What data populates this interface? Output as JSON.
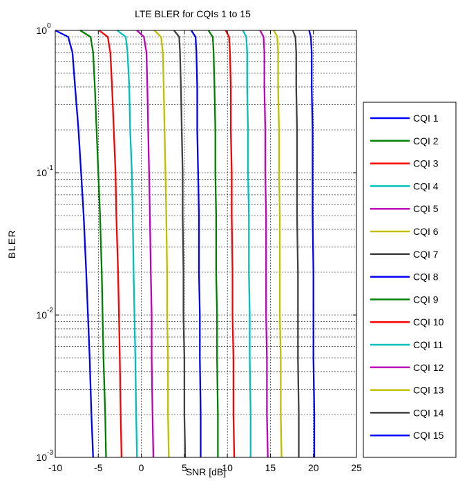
{
  "chart_data": {
    "type": "line",
    "title": "LTE BLER for CQIs 1 to 15",
    "xlabel": "SNR [dB]",
    "ylabel": "BLER",
    "xlim": [
      -10,
      25
    ],
    "ylim": [
      0.001,
      1
    ],
    "yscale": "log",
    "grid": true,
    "legend_position": "right, outside",
    "x_ticks": [
      "-10",
      "-5",
      "0",
      "5",
      "10",
      "15",
      "20",
      "25"
    ],
    "y_ticks": [
      {
        "base": "10",
        "exp": "0"
      },
      {
        "base": "10",
        "exp": "-1"
      },
      {
        "base": "10",
        "exp": "-2"
      },
      {
        "base": "10",
        "exp": "-3"
      }
    ],
    "curve_bler": [
      1,
      0.9,
      0.7,
      0.4,
      0.2,
      0.1,
      0.05,
      0.02,
      0.01,
      0.005,
      0.002,
      0.001
    ],
    "series": [
      {
        "name": "CQI 1",
        "color": "#0000ff",
        "snr": [
          -10.0,
          -8.5,
          -8.0,
          -7.7,
          -7.3,
          -7.0,
          -6.7,
          -6.4,
          -6.2,
          -6.0,
          -5.8,
          -5.6
        ]
      },
      {
        "name": "CQI 2",
        "color": "#008000",
        "snr": [
          -7.1,
          -5.9,
          -5.6,
          -5.4,
          -5.2,
          -5.0,
          -4.8,
          -4.6,
          -4.5,
          -4.4,
          -4.2,
          -4.1
        ]
      },
      {
        "name": "CQI 3",
        "color": "#ff0000",
        "snr": [
          -4.9,
          -3.9,
          -3.6,
          -3.4,
          -3.2,
          -3.0,
          -2.9,
          -2.7,
          -2.6,
          -2.5,
          -2.4,
          -2.3
        ]
      },
      {
        "name": "CQI 4",
        "color": "#00bfbf",
        "snr": [
          -2.8,
          -1.8,
          -1.6,
          -1.4,
          -1.3,
          -1.1,
          -1.0,
          -0.9,
          -0.8,
          -0.7,
          -0.6,
          -0.5
        ]
      },
      {
        "name": "CQI 5",
        "color": "#bf00bf",
        "snr": [
          -0.5,
          0.3,
          0.6,
          0.7,
          0.8,
          0.9,
          1.0,
          1.1,
          1.2,
          1.2,
          1.3,
          1.4
        ]
      },
      {
        "name": "CQI 6",
        "color": "#bfbf00",
        "snr": [
          1.5,
          2.3,
          2.5,
          2.6,
          2.7,
          2.8,
          2.9,
          3.0,
          3.0,
          3.1,
          3.1,
          3.2
        ]
      },
      {
        "name": "CQI 7",
        "color": "#404040",
        "snr": [
          3.8,
          4.4,
          4.5,
          4.6,
          4.7,
          4.8,
          4.8,
          4.9,
          4.9,
          5.0,
          5.0,
          5.1
        ]
      },
      {
        "name": "CQI 8",
        "color": "#0000ff",
        "snr": [
          5.8,
          6.3,
          6.4,
          6.5,
          6.5,
          6.6,
          6.7,
          6.7,
          6.8,
          6.8,
          6.9,
          6.9
        ]
      },
      {
        "name": "CQI 9",
        "color": "#008000",
        "snr": [
          7.8,
          8.3,
          8.4,
          8.5,
          8.6,
          8.6,
          8.7,
          8.7,
          8.8,
          8.8,
          8.9,
          8.9
        ]
      },
      {
        "name": "CQI 10",
        "color": "#ff0000",
        "snr": [
          9.8,
          10.2,
          10.3,
          10.4,
          10.4,
          10.5,
          10.5,
          10.6,
          10.6,
          10.7,
          10.7,
          10.8
        ]
      },
      {
        "name": "CQI 11",
        "color": "#00bfbf",
        "snr": [
          11.8,
          12.2,
          12.3,
          12.3,
          12.4,
          12.4,
          12.5,
          12.5,
          12.6,
          12.6,
          12.7,
          12.7
        ]
      },
      {
        "name": "CQI 12",
        "color": "#bf00bf",
        "snr": [
          13.8,
          14.2,
          14.3,
          14.3,
          14.4,
          14.4,
          14.5,
          14.5,
          14.5,
          14.6,
          14.6,
          14.7
        ]
      },
      {
        "name": "CQI 13",
        "color": "#bfbf00",
        "snr": [
          15.4,
          15.8,
          15.9,
          15.9,
          16.0,
          16.0,
          16.1,
          16.1,
          16.1,
          16.2,
          16.2,
          16.3
        ]
      },
      {
        "name": "CQI 14",
        "color": "#404040",
        "snr": [
          17.6,
          17.9,
          18.0,
          18.0,
          18.1,
          18.1,
          18.1,
          18.2,
          18.2,
          18.2,
          18.3,
          18.3
        ]
      },
      {
        "name": "CQI 15",
        "color": "#0000ff",
        "snr": [
          19.5,
          19.7,
          19.8,
          19.8,
          19.9,
          19.9,
          19.9,
          20.0,
          20.0,
          20.0,
          20.1,
          20.1
        ]
      }
    ]
  }
}
